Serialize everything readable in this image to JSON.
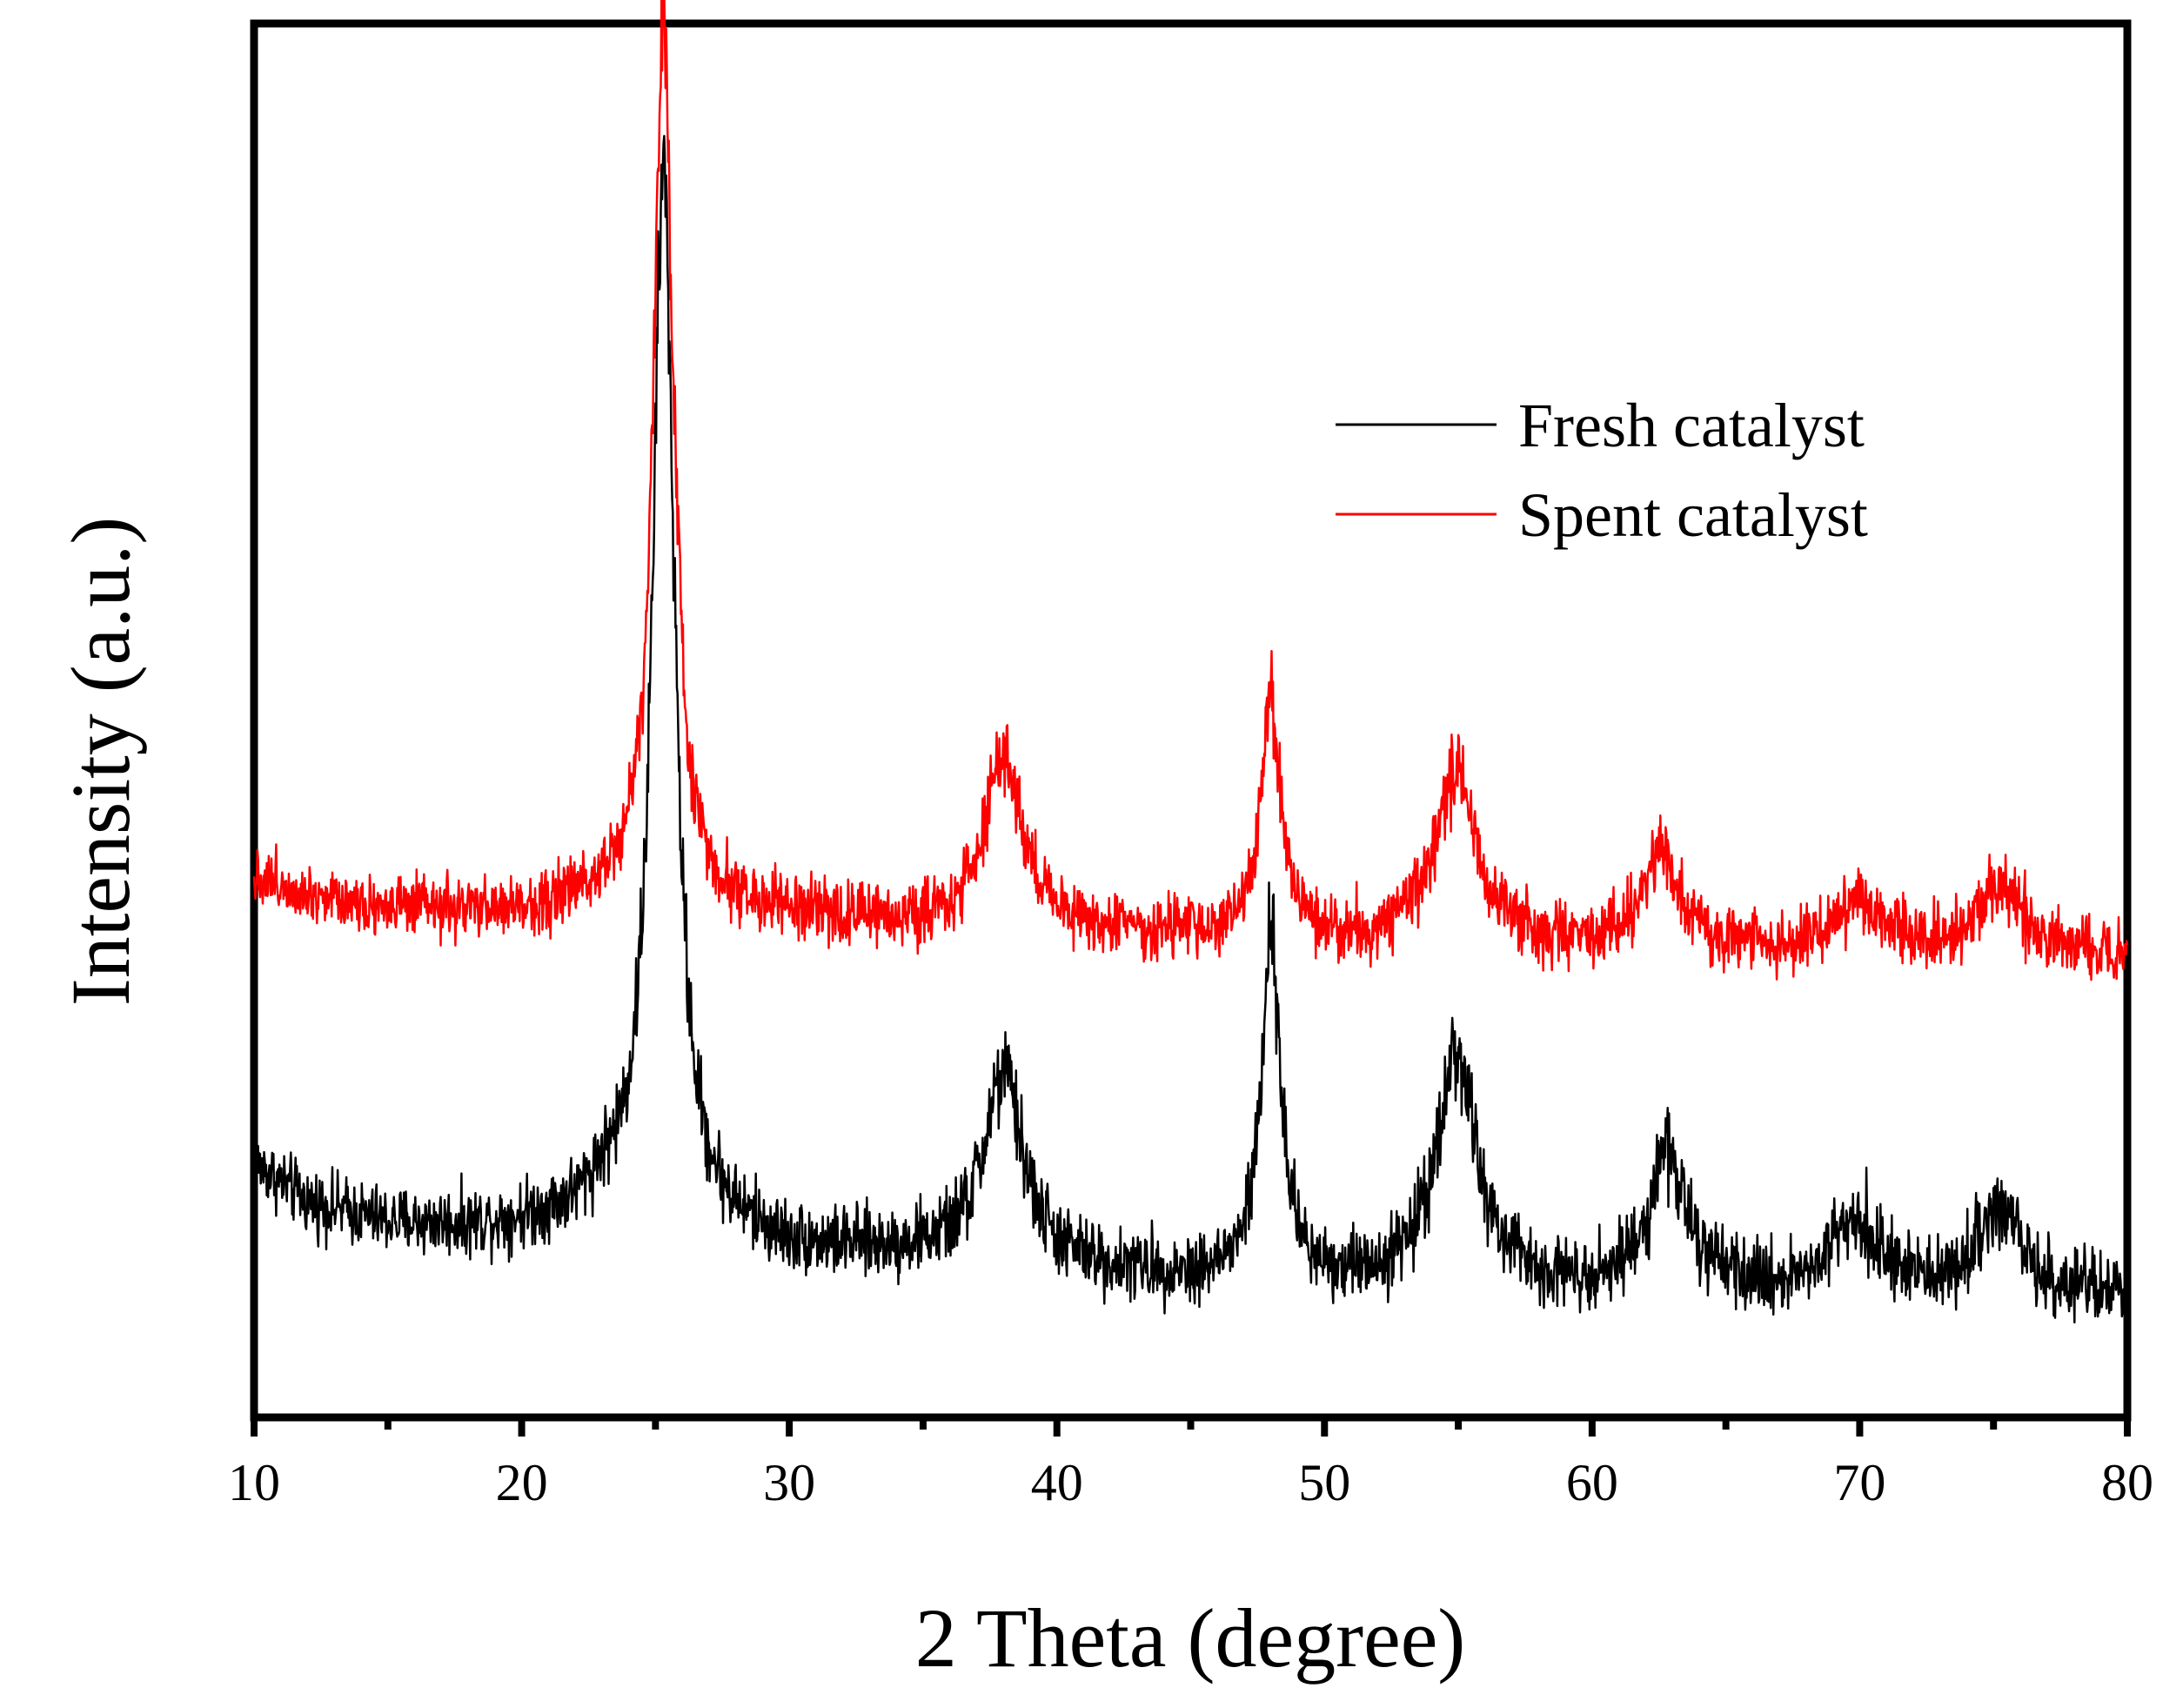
{
  "chart_data": {
    "type": "line",
    "title": "",
    "xlabel": "2 Theta (degree)",
    "ylabel": "Intensity (a.u.)",
    "xlim": [
      10,
      80
    ],
    "ylim": [
      0,
      100
    ],
    "x_ticks": [
      10,
      20,
      30,
      40,
      50,
      60,
      70,
      80
    ],
    "x_tick_labels": [
      "10",
      "20",
      "30",
      "40",
      "50",
      "60",
      "70",
      "80"
    ],
    "x_minor_ticks": [
      15,
      25,
      35,
      45,
      55,
      65,
      75
    ],
    "y_ticks_shown": false,
    "grid": false,
    "legend_position": "top-right",
    "series": [
      {
        "name": "Fresh catalyst",
        "color": "#000000",
        "baseline": [
          [
            10,
            18.2
          ],
          [
            12,
            15.4
          ],
          [
            15,
            13.9
          ],
          [
            18,
            13.6
          ],
          [
            20,
            13.9
          ],
          [
            22,
            14.6
          ],
          [
            23,
            15.8
          ],
          [
            30,
            12.0
          ],
          [
            35,
            11.6
          ],
          [
            40,
            10.6
          ],
          [
            45,
            9.8
          ],
          [
            50,
            9.6
          ],
          [
            55,
            9.4
          ],
          [
            60,
            9.2
          ],
          [
            65,
            9.0
          ],
          [
            70,
            8.9
          ],
          [
            75,
            8.8
          ],
          [
            80,
            8.6
          ]
        ],
        "peaks": [
          {
            "x": 25.3,
            "height": 75.0,
            "width": 0.5
          },
          {
            "x": 38.0,
            "height": 13.4,
            "width": 0.9
          },
          {
            "x": 48.0,
            "height": 24.0,
            "width": 0.45
          },
          {
            "x": 54.9,
            "height": 16.5,
            "width": 0.9
          },
          {
            "x": 62.8,
            "height": 9.8,
            "width": 0.8
          },
          {
            "x": 69.8,
            "height": 5.5,
            "width": 1.0
          },
          {
            "x": 75.2,
            "height": 6.5,
            "width": 0.9
          }
        ],
        "noise": 1.1
      },
      {
        "name": "Spent catalyst",
        "color": "#ff0000",
        "baseline": [
          [
            10,
            38.8
          ],
          [
            12,
            37.6
          ],
          [
            15,
            36.5
          ],
          [
            18,
            36.2
          ],
          [
            20,
            36.2
          ],
          [
            22,
            36.8
          ],
          [
            23,
            37.5
          ],
          [
            30,
            35.8
          ],
          [
            35,
            35.2
          ],
          [
            40,
            34.8
          ],
          [
            45,
            34.4
          ],
          [
            50,
            34.0
          ],
          [
            55,
            33.8
          ],
          [
            60,
            33.6
          ],
          [
            65,
            33.5
          ],
          [
            70,
            33.4
          ],
          [
            75,
            33.3
          ],
          [
            80,
            33.2
          ]
        ],
        "peaks": [
          {
            "x": 25.3,
            "height": 63.0,
            "width": 0.45
          },
          {
            "x": 38.0,
            "height": 12.0,
            "width": 0.9
          },
          {
            "x": 48.0,
            "height": 17.0,
            "width": 0.45
          },
          {
            "x": 54.9,
            "height": 12.8,
            "width": 0.9
          },
          {
            "x": 62.6,
            "height": 6.8,
            "width": 0.8
          },
          {
            "x": 69.9,
            "height": 3.6,
            "width": 1.0
          },
          {
            "x": 75.2,
            "height": 4.8,
            "width": 0.9
          }
        ],
        "noise": 1.0
      }
    ]
  }
}
